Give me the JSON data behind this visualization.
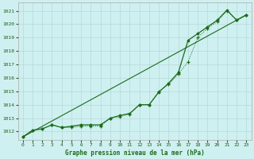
{
  "title": "Graphe pression niveau de la mer (hPa)",
  "bg_color": "#cff0f0",
  "grid_color": "#b8d8d8",
  "line_color": "#1a6b1a",
  "xlim": [
    -0.5,
    23.5
  ],
  "ylim": [
    1011.4,
    1021.6
  ],
  "yticks": [
    1012,
    1013,
    1014,
    1015,
    1016,
    1017,
    1018,
    1019,
    1020,
    1021
  ],
  "xticks": [
    0,
    1,
    2,
    3,
    4,
    5,
    6,
    7,
    8,
    9,
    10,
    11,
    12,
    13,
    14,
    15,
    16,
    17,
    18,
    19,
    20,
    21,
    22,
    23
  ],
  "series_dotted": [
    [
      0,
      1011.6
    ],
    [
      1,
      1012.1
    ],
    [
      2,
      1012.2
    ],
    [
      3,
      1012.5
    ],
    [
      4,
      1012.3
    ],
    [
      5,
      1012.3
    ],
    [
      6,
      1012.4
    ],
    [
      7,
      1012.4
    ],
    [
      8,
      1012.4
    ],
    [
      9,
      1013.0
    ],
    [
      10,
      1013.1
    ],
    [
      11,
      1013.3
    ],
    [
      12,
      1014.0
    ],
    [
      13,
      1014.0
    ],
    [
      14,
      1015.0
    ],
    [
      15,
      1015.5
    ],
    [
      16,
      1016.3
    ],
    [
      17,
      1017.2
    ],
    [
      18,
      1019.0
    ],
    [
      19,
      1019.7
    ],
    [
      20,
      1020.2
    ],
    [
      21,
      1021.0
    ],
    [
      22,
      1020.3
    ],
    [
      23,
      1020.7
    ]
  ],
  "series_solid": [
    [
      0,
      1011.6
    ],
    [
      1,
      1012.1
    ],
    [
      2,
      1012.2
    ],
    [
      3,
      1012.5
    ],
    [
      4,
      1012.3
    ],
    [
      5,
      1012.4
    ],
    [
      6,
      1012.5
    ],
    [
      7,
      1012.5
    ],
    [
      8,
      1012.5
    ],
    [
      9,
      1013.0
    ],
    [
      10,
      1013.2
    ],
    [
      11,
      1013.35
    ],
    [
      12,
      1014.0
    ],
    [
      13,
      1014.0
    ],
    [
      14,
      1014.95
    ],
    [
      15,
      1015.6
    ],
    [
      16,
      1016.4
    ],
    [
      17,
      1018.8
    ],
    [
      18,
      1019.3
    ],
    [
      19,
      1019.8
    ],
    [
      20,
      1020.3
    ],
    [
      21,
      1021.05
    ],
    [
      22,
      1020.3
    ],
    [
      23,
      1020.7
    ]
  ]
}
